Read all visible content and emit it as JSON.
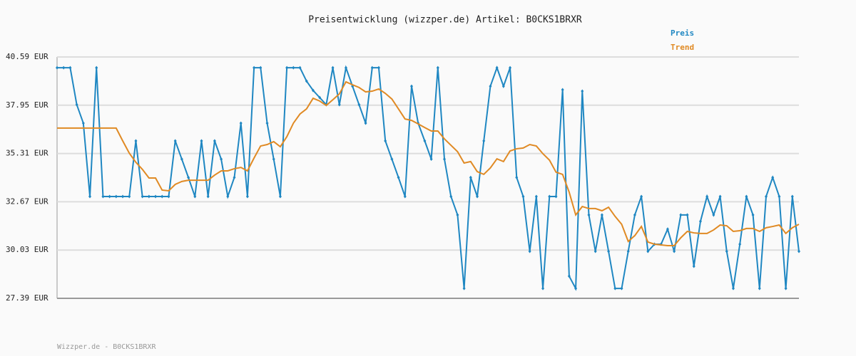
{
  "chart_data": {
    "type": "line",
    "title": "Preisentwicklung (wizzper.de) Artikel: B0CKS1BRXR",
    "footer": "Wizzper.de - B0CKS1BRXR",
    "ylim": [
      27.39,
      40.59
    ],
    "yticks": [
      {
        "value": 27.39,
        "label": "27.39 EUR"
      },
      {
        "value": 30.03,
        "label": "30.03 EUR"
      },
      {
        "value": 32.67,
        "label": "32.67 EUR"
      },
      {
        "value": 35.31,
        "label": "35.31 EUR"
      },
      {
        "value": 37.95,
        "label": "37.95 EUR"
      },
      {
        "value": 40.59,
        "label": "40.59 EUR"
      }
    ],
    "grid": true,
    "legend": "top-right",
    "series": [
      {
        "name": "Preis",
        "color": "#1f87c2",
        "values": [
          40.0,
          40.0,
          40.0,
          37.98,
          36.97,
          32.96,
          40.0,
          32.96,
          32.96,
          32.96,
          32.96,
          32.96,
          36.0,
          32.96,
          32.96,
          32.96,
          32.96,
          32.96,
          36.0,
          35.0,
          34.0,
          32.96,
          36.0,
          32.96,
          36.0,
          35.0,
          32.96,
          34.0,
          36.97,
          32.96,
          40.0,
          40.0,
          36.97,
          35.0,
          32.96,
          40.0,
          40.0,
          40.0,
          39.27,
          38.76,
          38.37,
          37.98,
          40.0,
          37.98,
          40.0,
          38.99,
          37.98,
          36.97,
          40.0,
          40.0,
          36.0,
          35.0,
          34.0,
          32.96,
          38.99,
          36.97,
          36.0,
          35.0,
          40.0,
          35.0,
          32.96,
          31.95,
          27.93,
          34.0,
          32.96,
          36.0,
          38.99,
          40.0,
          38.99,
          40.0,
          34.0,
          32.96,
          29.96,
          32.96,
          27.93,
          32.96,
          32.96,
          38.8,
          28.6,
          27.93,
          38.72,
          31.95,
          29.96,
          31.95,
          29.96,
          27.93,
          27.93,
          29.96,
          31.95,
          32.96,
          29.96,
          30.35,
          30.35,
          31.17,
          29.96,
          31.95,
          31.95,
          29.14,
          31.6,
          32.96,
          31.95,
          32.96,
          29.96,
          27.93,
          30.35,
          32.96,
          31.95,
          27.93,
          32.96,
          34.0,
          32.96,
          27.93,
          32.96,
          29.96
        ]
      },
      {
        "name": "Trend",
        "color": "#e08a24",
        "values": [
          36.7,
          36.7,
          36.7,
          36.7,
          36.7,
          36.7,
          36.7,
          36.7,
          36.7,
          36.7,
          36.0,
          35.33,
          34.83,
          34.44,
          33.97,
          33.97,
          33.31,
          33.27,
          33.62,
          33.78,
          33.85,
          33.85,
          33.85,
          33.85,
          34.13,
          34.36,
          34.36,
          34.48,
          34.55,
          34.36,
          35.06,
          35.72,
          35.8,
          35.96,
          35.68,
          36.23,
          36.97,
          37.47,
          37.75,
          38.33,
          38.18,
          37.94,
          38.25,
          38.57,
          39.23,
          39.07,
          38.92,
          38.68,
          38.72,
          38.84,
          38.6,
          38.29,
          37.75,
          37.2,
          37.12,
          36.93,
          36.73,
          36.54,
          36.54,
          36.11,
          35.76,
          35.41,
          34.79,
          34.87,
          34.32,
          34.17,
          34.52,
          35.02,
          34.87,
          35.45,
          35.57,
          35.61,
          35.8,
          35.72,
          35.3,
          34.95,
          34.29,
          34.17,
          33.2,
          31.95,
          32.41,
          32.3,
          32.3,
          32.18,
          32.37,
          31.87,
          31.44,
          30.5,
          30.82,
          31.32,
          30.47,
          30.35,
          30.31,
          30.27,
          30.27,
          30.7,
          31.05,
          30.97,
          30.94,
          30.94,
          31.13,
          31.4,
          31.36,
          31.05,
          31.09,
          31.21,
          31.21,
          31.05,
          31.25,
          31.32,
          31.4,
          30.94,
          31.25,
          31.44
        ]
      }
    ]
  }
}
